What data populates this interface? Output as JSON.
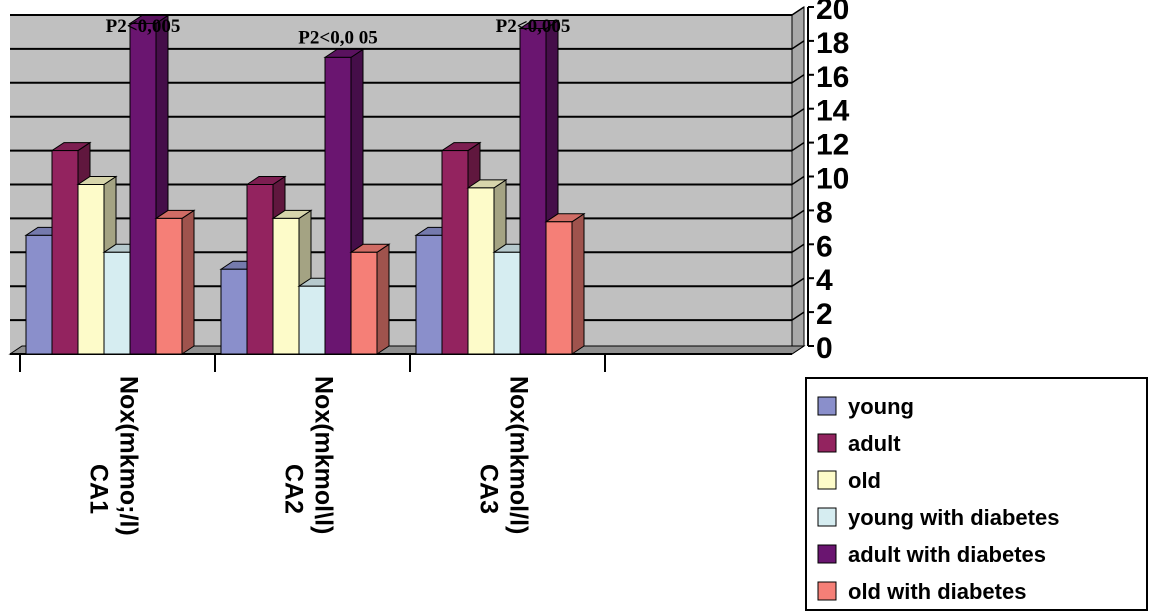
{
  "chart_data": {
    "type": "bar",
    "categories": [
      "Nox(mkmo;/l) CA1",
      "Nox(mkmol\\l) CA2",
      "Nox(mkmol/l) CA3"
    ],
    "category_labels": [
      {
        "line1": "Nox(mkmo;/l)",
        "line2": "CA1"
      },
      {
        "line1": "Nox(mkmol\\l)",
        "line2": "CA2"
      },
      {
        "line1": "Nox(mkmol/l)",
        "line2": "CA3"
      }
    ],
    "series": [
      {
        "name": "young",
        "values": [
          7,
          5,
          7
        ],
        "color": "#8a8fcb"
      },
      {
        "name": "adult",
        "values": [
          12,
          10,
          12
        ],
        "color": "#93235f"
      },
      {
        "name": "old",
        "values": [
          10,
          8,
          9.8
        ],
        "color": "#fdfbc9"
      },
      {
        "name": "young with diabetes",
        "values": [
          6,
          4,
          6
        ],
        "color": "#d6edf1"
      },
      {
        "name": "adult with diabetes",
        "values": [
          19.5,
          17.5,
          19.2
        ],
        "color": "#6a1570"
      },
      {
        "name": "old with diabetes",
        "values": [
          8,
          6,
          7.8
        ],
        "color": "#f57f77"
      }
    ],
    "annotations": [
      {
        "category": 0,
        "text": "P2<0,005"
      },
      {
        "category": 1,
        "text": "P2<0,0 05"
      },
      {
        "category": 2,
        "text": "P2<0,005"
      }
    ],
    "ylim": [
      0,
      20
    ],
    "yticks": [
      "0",
      "2",
      "4",
      "6",
      "8",
      "10",
      "12",
      "14",
      "16",
      "18",
      "20"
    ],
    "ytick_values": [
      0,
      2,
      4,
      6,
      8,
      10,
      12,
      14,
      16,
      18,
      20
    ],
    "title": "",
    "xlabel": "",
    "ylabel": "",
    "grid": true,
    "legend_position": "bottom-right",
    "background_color": "#c0c0c0",
    "empty_category_slot": true
  }
}
